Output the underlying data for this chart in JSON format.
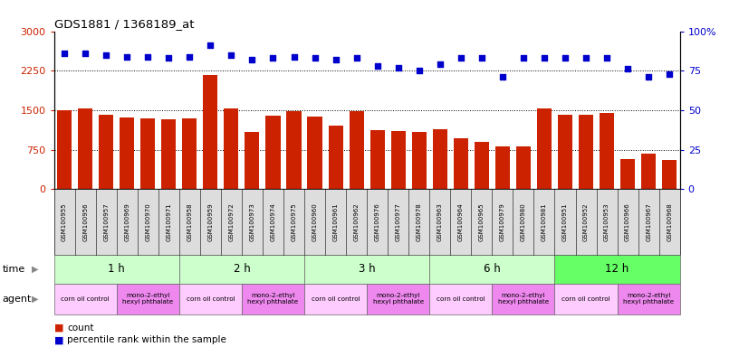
{
  "title": "GDS1881 / 1368189_at",
  "samples": [
    "GSM100955",
    "GSM100956",
    "GSM100957",
    "GSM100969",
    "GSM100970",
    "GSM100971",
    "GSM100958",
    "GSM100959",
    "GSM100972",
    "GSM100973",
    "GSM100974",
    "GSM100975",
    "GSM100960",
    "GSM100961",
    "GSM100962",
    "GSM100976",
    "GSM100977",
    "GSM100978",
    "GSM100963",
    "GSM100964",
    "GSM100965",
    "GSM100979",
    "GSM100980",
    "GSM100981",
    "GSM100951",
    "GSM100952",
    "GSM100953",
    "GSM100966",
    "GSM100967",
    "GSM100968"
  ],
  "counts": [
    1500,
    1540,
    1420,
    1360,
    1350,
    1330,
    1340,
    2170,
    1540,
    1080,
    1390,
    1480,
    1380,
    1200,
    1490,
    1120,
    1100,
    1080,
    1130,
    960,
    900,
    810,
    810,
    1530,
    1420,
    1410,
    1450,
    580,
    680,
    560
  ],
  "percentiles": [
    86,
    86,
    85,
    84,
    84,
    83,
    84,
    91,
    85,
    82,
    83,
    84,
    83,
    82,
    83,
    78,
    77,
    75,
    79,
    83,
    83,
    71,
    83,
    83,
    83,
    83,
    83,
    76,
    71,
    73
  ],
  "bar_color": "#cc2200",
  "dot_color": "#0000cc",
  "ylim_left": [
    0,
    3000
  ],
  "ylim_right": [
    0,
    100
  ],
  "yticks_left": [
    0,
    750,
    1500,
    2250,
    3000
  ],
  "yticks_right": [
    0,
    25,
    50,
    75,
    100
  ],
  "time_groups": [
    {
      "label": "1 h",
      "start": 0,
      "end": 6
    },
    {
      "label": "2 h",
      "start": 6,
      "end": 12
    },
    {
      "label": "3 h",
      "start": 12,
      "end": 18
    },
    {
      "label": "6 h",
      "start": 18,
      "end": 24
    },
    {
      "label": "12 h",
      "start": 24,
      "end": 30
    }
  ],
  "agent_groups": [
    {
      "label": "corn oil control",
      "start": 0,
      "end": 3,
      "color": "#ffccff"
    },
    {
      "label": "mono-2-ethyl\nhexyl phthalate",
      "start": 3,
      "end": 6,
      "color": "#ee88ee"
    },
    {
      "label": "corn oil control",
      "start": 6,
      "end": 9,
      "color": "#ffccff"
    },
    {
      "label": "mono-2-ethyl\nhexyl phthalate",
      "start": 9,
      "end": 12,
      "color": "#ee88ee"
    },
    {
      "label": "corn oil control",
      "start": 12,
      "end": 15,
      "color": "#ffccff"
    },
    {
      "label": "mono-2-ethyl\nhexyl phthalate",
      "start": 15,
      "end": 18,
      "color": "#ee88ee"
    },
    {
      "label": "corn oil control",
      "start": 18,
      "end": 21,
      "color": "#ffccff"
    },
    {
      "label": "mono-2-ethyl\nhexyl phthalate",
      "start": 21,
      "end": 24,
      "color": "#ee88ee"
    },
    {
      "label": "corn oil control",
      "start": 24,
      "end": 27,
      "color": "#ffccff"
    },
    {
      "label": "mono-2-ethyl\nhexyl phthalate",
      "start": 27,
      "end": 30,
      "color": "#ee88ee"
    }
  ],
  "time_row_color_light": "#ccffcc",
  "time_row_color_dark": "#66ff66",
  "sample_bg_color": "#dddddd",
  "background_color": "#ffffff"
}
